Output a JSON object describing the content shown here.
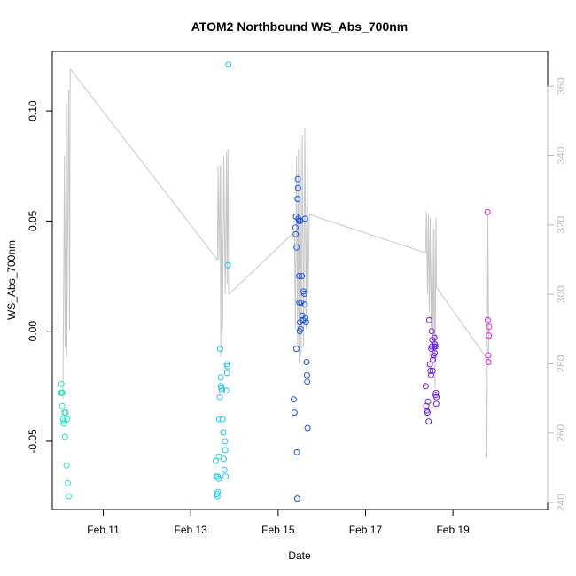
{
  "chart_data": {
    "type": "scatter",
    "title": "ATOM2 Northbound WS_Abs_700nm",
    "xlabel": "Date",
    "ylabel": "WS_Abs_700nm",
    "xlim": [
      "2016-02-09T20:00",
      "2016-02-21T04:00"
    ],
    "ylim": [
      -0.081,
      0.127
    ],
    "y2lim": [
      238,
      370
    ],
    "grid": false,
    "x_ticks": [
      {
        "t": "2016-02-11T00:00",
        "label": "Feb 11"
      },
      {
        "t": "2016-02-13T00:00",
        "label": "Feb 13"
      },
      {
        "t": "2016-02-15T00:00",
        "label": "Feb 15"
      },
      {
        "t": "2016-02-17T00:00",
        "label": "Feb 17"
      },
      {
        "t": "2016-02-19T00:00",
        "label": "Feb 19"
      }
    ],
    "y_ticks": [
      {
        "v": 0.1,
        "label": "0.10"
      },
      {
        "v": 0.05,
        "label": "0.05"
      },
      {
        "v": 0.0,
        "label": "0.00"
      },
      {
        "v": -0.05,
        "label": "-0.05"
      }
    ],
    "y2_ticks": [
      {
        "v": 360,
        "label": "360"
      },
      {
        "v": 340,
        "label": "340"
      },
      {
        "v": 320,
        "label": "320"
      },
      {
        "v": 300,
        "label": "300"
      },
      {
        "v": 280,
        "label": "280"
      },
      {
        "v": 260,
        "label": "260"
      },
      {
        "v": 240,
        "label": "240"
      }
    ],
    "line_color": "#c8c8c8",
    "line_series": [
      [
        "2016-02-10T01:50",
        270
      ],
      [
        "2016-02-10T02:40",
        340
      ],
      [
        "2016-02-10T03:00",
        285
      ],
      [
        "2016-02-10T03:50",
        355
      ],
      [
        "2016-02-10T04:00",
        282
      ],
      [
        "2016-02-10T05:00",
        359
      ],
      [
        "2016-02-10T05:30",
        290
      ],
      [
        "2016-02-10T05:50",
        365
      ],
      [
        "2016-02-13T14:40",
        310
      ],
      [
        "2016-02-13T15:00",
        337
      ],
      [
        "2016-02-13T15:30",
        310
      ],
      [
        "2016-02-13T16:10",
        337
      ],
      [
        "2016-02-13T16:30",
        282
      ],
      [
        "2016-02-13T17:00",
        338
      ],
      [
        "2016-02-13T17:30",
        290
      ],
      [
        "2016-02-13T18:10",
        340
      ],
      [
        "2016-02-13T19:00",
        300
      ],
      [
        "2016-02-13T19:40",
        341
      ],
      [
        "2016-02-13T20:00",
        303
      ],
      [
        "2016-02-13T20:30",
        342
      ],
      [
        "2016-02-13T20:50",
        300
      ],
      [
        "2016-02-15T09:00",
        318
      ],
      [
        "2016-02-15T09:30",
        290
      ],
      [
        "2016-02-15T10:10",
        340
      ],
      [
        "2016-02-15T10:40",
        285
      ],
      [
        "2016-02-15T11:10",
        342
      ],
      [
        "2016-02-15T11:30",
        280
      ],
      [
        "2016-02-15T12:10",
        344
      ],
      [
        "2016-02-15T12:40",
        282
      ],
      [
        "2016-02-15T13:20",
        346
      ],
      [
        "2016-02-15T14:00",
        285
      ],
      [
        "2016-02-15T14:40",
        348
      ],
      [
        "2016-02-15T15:20",
        290
      ],
      [
        "2016-02-15T16:00",
        342
      ],
      [
        "2016-02-15T16:30",
        300
      ],
      [
        "2016-02-15T17:10",
        323
      ],
      [
        "2016-02-18T09:00",
        312
      ],
      [
        "2016-02-18T09:30",
        324
      ],
      [
        "2016-02-18T10:00",
        300
      ],
      [
        "2016-02-18T10:30",
        323
      ],
      [
        "2016-02-18T11:00",
        295
      ],
      [
        "2016-02-18T11:30",
        322
      ],
      [
        "2016-02-18T12:00",
        290
      ],
      [
        "2016-02-18T12:40",
        320
      ],
      [
        "2016-02-18T13:10",
        283
      ],
      [
        "2016-02-18T13:40",
        319
      ],
      [
        "2016-02-18T14:10",
        273
      ],
      [
        "2016-02-18T14:40",
        322
      ],
      [
        "2016-02-18T15:00",
        302
      ],
      [
        "2016-02-19T18:00",
        282
      ],
      [
        "2016-02-19T18:40",
        253
      ],
      [
        "2016-02-19T19:10",
        323
      ],
      [
        "2016-02-19T19:40",
        283
      ]
    ],
    "series": [
      {
        "color": "#27e6c8",
        "points": [
          [
            "2016-02-10T00:50",
            -0.028
          ],
          [
            "2016-02-10T01:00",
            -0.024
          ],
          [
            "2016-02-10T01:20",
            -0.028
          ],
          [
            "2016-02-10T01:30",
            -0.034
          ],
          [
            "2016-02-10T02:00",
            -0.04
          ],
          [
            "2016-02-10T02:20",
            -0.042
          ],
          [
            "2016-02-10T02:40",
            -0.037
          ],
          [
            "2016-02-10T03:00",
            -0.048
          ],
          [
            "2016-02-10T03:20",
            -0.037
          ],
          [
            "2016-02-10T03:50",
            -0.061
          ],
          [
            "2016-02-10T04:30",
            -0.069
          ],
          [
            "2016-02-10T05:00",
            -0.075
          ],
          [
            "2016-02-10T01:40",
            -0.028
          ],
          [
            "2016-02-10T02:30",
            -0.041
          ],
          [
            "2016-02-10T04:10",
            -0.04
          ]
        ]
      },
      {
        "color": "#22c8e8",
        "points": [
          [
            "2016-02-13T13:40",
            -0.059
          ],
          [
            "2016-02-13T14:00",
            -0.066
          ],
          [
            "2016-02-13T14:20",
            -0.074
          ],
          [
            "2016-02-13T14:40",
            -0.075
          ],
          [
            "2016-02-13T15:00",
            -0.073
          ],
          [
            "2016-02-13T15:20",
            -0.067
          ],
          [
            "2016-02-13T15:30",
            -0.057
          ],
          [
            "2016-02-13T15:40",
            -0.04
          ],
          [
            "2016-02-13T16:00",
            -0.03
          ],
          [
            "2016-02-13T16:10",
            -0.008
          ],
          [
            "2016-02-13T16:30",
            -0.021
          ],
          [
            "2016-02-13T16:50",
            -0.026
          ],
          [
            "2016-02-13T17:10",
            -0.027
          ],
          [
            "2016-02-13T17:30",
            -0.04
          ],
          [
            "2016-02-13T17:50",
            -0.046
          ],
          [
            "2016-02-13T18:10",
            -0.058
          ],
          [
            "2016-02-13T18:30",
            -0.063
          ],
          [
            "2016-02-13T18:50",
            -0.05
          ],
          [
            "2016-02-13T19:00",
            -0.054
          ],
          [
            "2016-02-13T19:10",
            -0.066
          ],
          [
            "2016-02-13T19:30",
            -0.027
          ],
          [
            "2016-02-13T19:50",
            -0.015
          ],
          [
            "2016-02-13T20:00",
            -0.019
          ],
          [
            "2016-02-13T20:10",
            -0.016
          ],
          [
            "2016-02-13T20:20",
            0.03
          ],
          [
            "2016-02-13T20:40",
            0.121
          ],
          [
            "2016-02-13T14:50",
            -0.066
          ],
          [
            "2016-02-13T16:40",
            -0.025
          ]
        ]
      },
      {
        "color": "#1a4ee8",
        "points": [
          [
            "2016-02-15T08:30",
            -0.031
          ],
          [
            "2016-02-15T09:00",
            -0.037
          ],
          [
            "2016-02-15T09:30",
            0.047
          ],
          [
            "2016-02-15T09:40",
            0.044
          ],
          [
            "2016-02-15T09:50",
            0.052
          ],
          [
            "2016-02-15T10:00",
            -0.008
          ],
          [
            "2016-02-15T10:10",
            0.038
          ],
          [
            "2016-02-15T10:20",
            -0.055
          ],
          [
            "2016-02-15T10:30",
            -0.076
          ],
          [
            "2016-02-15T10:40",
            0.06
          ],
          [
            "2016-02-15T10:50",
            0.069
          ],
          [
            "2016-02-15T11:00",
            0.065
          ],
          [
            "2016-02-15T11:10",
            0.051
          ],
          [
            "2016-02-15T11:20",
            0.05
          ],
          [
            "2016-02-15T11:30",
            0.025
          ],
          [
            "2016-02-15T11:40",
            0.013
          ],
          [
            "2016-02-15T11:50",
            0.0
          ],
          [
            "2016-02-15T12:00",
            0.004
          ],
          [
            "2016-02-15T12:20",
            0.001
          ],
          [
            "2016-02-15T12:40",
            0.013
          ],
          [
            "2016-02-15T13:00",
            0.025
          ],
          [
            "2016-02-15T13:20",
            0.007
          ],
          [
            "2016-02-15T13:40",
            0.005
          ],
          [
            "2016-02-15T14:00",
            0.018
          ],
          [
            "2016-02-15T14:20",
            0.017
          ],
          [
            "2016-02-15T14:40",
            0.012
          ],
          [
            "2016-02-15T15:00",
            0.006
          ],
          [
            "2016-02-15T15:20",
            0.004
          ],
          [
            "2016-02-15T15:40",
            -0.014
          ],
          [
            "2016-02-15T15:50",
            -0.02
          ],
          [
            "2016-02-15T16:00",
            -0.023
          ],
          [
            "2016-02-15T16:10",
            -0.044
          ],
          [
            "2016-02-15T12:10",
            0.05
          ],
          [
            "2016-02-15T14:50",
            0.051
          ]
        ]
      },
      {
        "color": "#6c1ee8",
        "points": [
          [
            "2016-02-18T09:00",
            -0.025
          ],
          [
            "2016-02-18T09:20",
            -0.034
          ],
          [
            "2016-02-18T09:40",
            -0.036
          ],
          [
            "2016-02-18T10:00",
            -0.037
          ],
          [
            "2016-02-18T10:20",
            -0.032
          ],
          [
            "2016-02-18T10:40",
            -0.041
          ],
          [
            "2016-02-18T11:00",
            0.005
          ],
          [
            "2016-02-18T11:20",
            -0.015
          ],
          [
            "2016-02-18T11:40",
            -0.018
          ],
          [
            "2016-02-18T12:00",
            -0.02
          ],
          [
            "2016-02-18T12:10",
            -0.008
          ],
          [
            "2016-02-18T12:20",
            0.0
          ],
          [
            "2016-02-18T12:30",
            -0.007
          ],
          [
            "2016-02-18T12:40",
            -0.004
          ],
          [
            "2016-02-18T12:50",
            -0.018
          ],
          [
            "2016-02-18T13:00",
            -0.013
          ],
          [
            "2016-02-18T13:20",
            -0.011
          ],
          [
            "2016-02-18T13:40",
            -0.007
          ],
          [
            "2016-02-18T13:50",
            -0.003
          ],
          [
            "2016-02-18T14:00",
            -0.01
          ],
          [
            "2016-02-18T14:10",
            -0.006
          ],
          [
            "2016-02-18T14:20",
            -0.007
          ],
          [
            "2016-02-18T14:30",
            -0.029
          ],
          [
            "2016-02-18T14:40",
            -0.028
          ],
          [
            "2016-02-18T14:50",
            -0.033
          ],
          [
            "2016-02-18T15:00",
            -0.03
          ]
        ]
      },
      {
        "color": "#e81ee8",
        "points": [
          [
            "2016-02-19T19:00",
            0.054
          ],
          [
            "2016-02-19T19:10",
            0.005
          ],
          [
            "2016-02-19T19:20",
            -0.011
          ],
          [
            "2016-02-19T19:30",
            -0.014
          ],
          [
            "2016-02-19T19:40",
            -0.002
          ],
          [
            "2016-02-19T19:50",
            0.002
          ]
        ]
      }
    ]
  }
}
